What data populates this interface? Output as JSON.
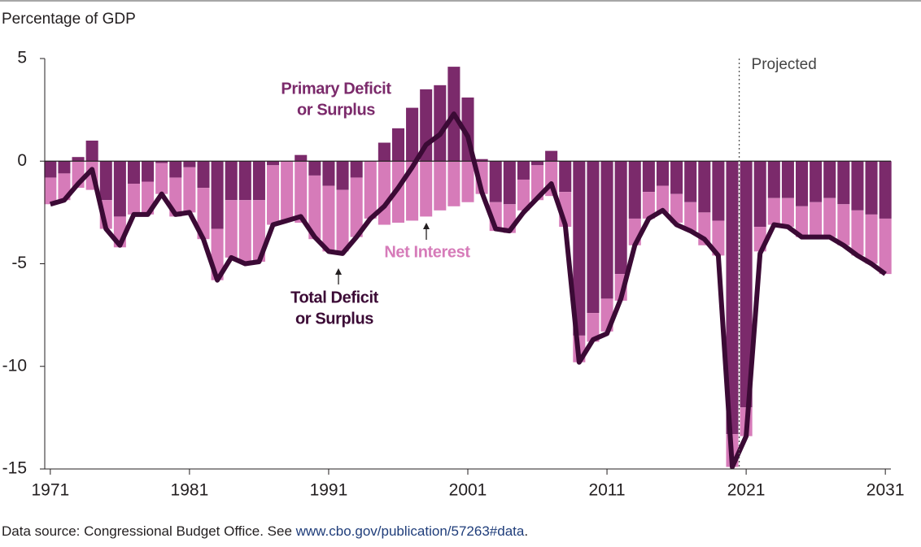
{
  "chart_data": {
    "type": "stacked-bar-line",
    "title": "Percentage of GDP",
    "source": {
      "text": "Data source: Congressional Budget Office. See ",
      "link": "www.cbo.gov/publication/57263#data",
      "end": "."
    },
    "x": [
      1971,
      1972,
      1973,
      1974,
      1975,
      1976,
      1977,
      1978,
      1979,
      1980,
      1981,
      1982,
      1983,
      1984,
      1985,
      1986,
      1987,
      1988,
      1989,
      1990,
      1991,
      1992,
      1993,
      1994,
      1995,
      1996,
      1997,
      1998,
      1999,
      2000,
      2001,
      2002,
      2003,
      2004,
      2005,
      2006,
      2007,
      2008,
      2009,
      2010,
      2011,
      2012,
      2013,
      2014,
      2015,
      2016,
      2017,
      2018,
      2019,
      2020,
      2021,
      2022,
      2023,
      2024,
      2025,
      2026,
      2027,
      2028,
      2029,
      2030,
      2031
    ],
    "series": [
      {
        "name": [
          "Primary Deficit",
          "or Surplus"
        ],
        "kind": "bar",
        "color": "#7b2a6b",
        "values": [
          -0.8,
          -0.6,
          0.2,
          1.0,
          -1.9,
          -2.7,
          -1.1,
          -1.0,
          -0.1,
          -0.8,
          -0.3,
          -1.3,
          -3.3,
          -1.9,
          -1.9,
          -1.9,
          -0.2,
          0.0,
          0.3,
          -0.7,
          -1.2,
          -1.4,
          -0.8,
          0.0,
          0.9,
          1.6,
          2.6,
          3.5,
          3.7,
          4.6,
          3.1,
          0.1,
          -2.0,
          -2.1,
          -0.9,
          -0.2,
          0.5,
          -1.5,
          -8.5,
          -7.4,
          -6.7,
          -5.5,
          -2.8,
          -1.5,
          -1.2,
          -1.6,
          -2.0,
          -2.5,
          -2.9,
          -13.3,
          -12.0,
          -3.2,
          -1.8,
          -1.8,
          -2.2,
          -2.0,
          -1.8,
          -2.1,
          -2.4,
          -2.6,
          -2.8
        ]
      },
      {
        "name": [
          "Net Interest"
        ],
        "kind": "bar",
        "color": "#d67bb9",
        "values": [
          -1.3,
          -1.3,
          -1.3,
          -1.4,
          -1.4,
          -1.5,
          -1.5,
          -1.6,
          -1.5,
          -1.9,
          -2.2,
          -2.5,
          -2.5,
          -2.8,
          -3.0,
          -3.0,
          -2.9,
          -2.9,
          -3.0,
          -3.1,
          -3.2,
          -3.0,
          -2.9,
          -2.8,
          -3.1,
          -3.0,
          -2.9,
          -2.7,
          -2.4,
          -2.2,
          -2.0,
          -1.6,
          -1.4,
          -1.4,
          -1.5,
          -1.7,
          -1.7,
          -1.7,
          -1.3,
          -1.4,
          -1.6,
          -1.3,
          -1.3,
          -1.3,
          -1.3,
          -1.4,
          -1.4,
          -1.6,
          -1.7,
          -1.6,
          -1.4,
          -1.2,
          -1.3,
          -1.4,
          -1.5,
          -1.7,
          -1.9,
          -2.0,
          -2.2,
          -2.4,
          -2.7
        ]
      },
      {
        "name": [
          "Total Deficit",
          "or Surplus"
        ],
        "kind": "line",
        "color": "#3b0a35",
        "values": [
          -2.1,
          -1.9,
          -1.1,
          -0.4,
          -3.3,
          -4.1,
          -2.6,
          -2.6,
          -1.6,
          -2.6,
          -2.5,
          -3.8,
          -5.8,
          -4.7,
          -5.0,
          -4.9,
          -3.1,
          -2.9,
          -2.7,
          -3.7,
          -4.4,
          -4.5,
          -3.7,
          -2.8,
          -2.2,
          -1.3,
          -0.3,
          0.8,
          1.3,
          2.3,
          1.2,
          -1.5,
          -3.3,
          -3.4,
          -2.5,
          -1.8,
          -1.1,
          -3.1,
          -9.8,
          -8.7,
          -8.4,
          -6.7,
          -4.1,
          -2.8,
          -2.4,
          -3.1,
          -3.4,
          -3.8,
          -4.6,
          -14.9,
          -13.4,
          -4.5,
          -3.1,
          -3.2,
          -3.7,
          -3.7,
          -3.7,
          -4.1,
          -4.6,
          -5.0,
          -5.5
        ]
      }
    ],
    "projection": {
      "label": "Projected",
      "start": 2020.5
    },
    "xlim": [
      1970.6,
      2031.4
    ],
    "xticks": [
      1971,
      1981,
      1991,
      2001,
      2011,
      2021,
      2031
    ],
    "ylim": [
      -15,
      5
    ],
    "yticks": [
      5,
      0,
      -5,
      -10,
      -15
    ]
  }
}
